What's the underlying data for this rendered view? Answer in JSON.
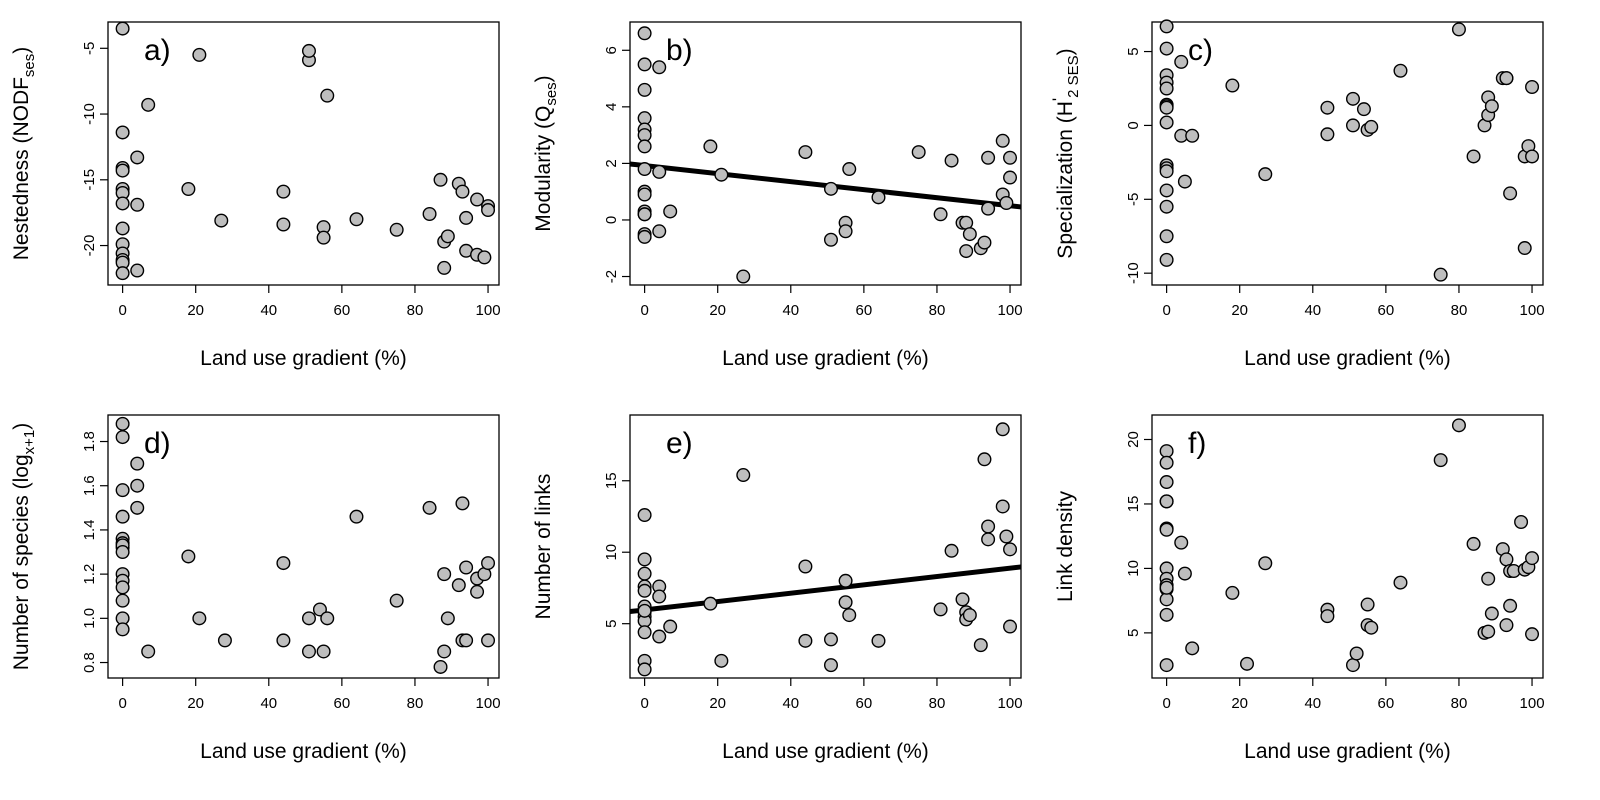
{
  "xlabel": "Land use gradient (%)",
  "chart_data": [
    {
      "type": "scatter",
      "panel_label": "a)",
      "ylabel": {
        "main": "Nestedness (NODF",
        "sub": "ses",
        "end": ")"
      },
      "xlim": [
        -4,
        103
      ],
      "ylim": [
        -23,
        -3
      ],
      "xticks": [
        0,
        20,
        40,
        60,
        80,
        100
      ],
      "yticks": [
        -20,
        -15,
        -10,
        -5
      ],
      "ytick_labels": [
        "-20",
        "-15",
        "-10",
        "-5"
      ],
      "x": [
        0,
        0,
        0,
        0,
        0,
        0,
        0,
        0,
        0,
        0,
        0,
        0,
        0,
        4,
        4,
        4,
        7,
        18,
        21,
        27,
        44,
        44,
        51,
        51,
        55,
        55,
        56,
        64,
        75,
        84,
        87,
        88,
        88,
        89,
        92,
        93,
        94,
        94,
        97,
        97,
        99,
        100,
        100
      ],
      "y": [
        -3.5,
        -11.4,
        -14.1,
        -14.3,
        -15.7,
        -16,
        -16.8,
        -18.7,
        -19.9,
        -20.6,
        -21.1,
        -21.3,
        -22.1,
        -13.3,
        -16.9,
        -21.9,
        -9.3,
        -15.7,
        -5.5,
        -18.1,
        -15.9,
        -18.4,
        -5.9,
        -5.2,
        -18.6,
        -19.4,
        -8.6,
        -18,
        -18.8,
        -17.6,
        -15,
        -19.7,
        -21.7,
        -19.3,
        -15.3,
        -15.9,
        -17.9,
        -20.4,
        -16.5,
        -20.7,
        -20.9,
        -17,
        -17.3
      ]
    },
    {
      "type": "scatter",
      "panel_label": "b)",
      "ylabel": {
        "main": "Modularity (Q",
        "sub": "ses",
        "end": ")"
      },
      "xlim": [
        -4,
        103
      ],
      "ylim": [
        -2.3,
        7
      ],
      "xticks": [
        0,
        20,
        40,
        60,
        80,
        100
      ],
      "yticks": [
        -2,
        0,
        2,
        4,
        6
      ],
      "ytick_labels": [
        "-2",
        "0",
        "2",
        "4",
        "6"
      ],
      "x": [
        0,
        0,
        0,
        0,
        0,
        0,
        0,
        0,
        0,
        0,
        0,
        0,
        0,
        0,
        0,
        4,
        4,
        4,
        7,
        18,
        21,
        27,
        44,
        51,
        51,
        55,
        55,
        56,
        64,
        75,
        81,
        84,
        87,
        88,
        88,
        89,
        92,
        93,
        94,
        94,
        98,
        98,
        100,
        100,
        99
      ],
      "y": [
        6.6,
        5.5,
        4.6,
        3.6,
        3.2,
        3,
        2.6,
        1.8,
        1,
        0.9,
        0.3,
        0.2,
        0.2,
        -0.5,
        -0.6,
        5.4,
        1.7,
        -0.4,
        0.3,
        2.6,
        1.6,
        -2,
        2.4,
        1.1,
        -0.7,
        -0.1,
        -0.4,
        1.8,
        0.8,
        2.4,
        0.2,
        2.1,
        -0.1,
        -0.1,
        -1.1,
        -0.5,
        -1,
        -0.8,
        0.4,
        2.2,
        2.8,
        0.9,
        2.2,
        1.5,
        0.6
      ],
      "trend": {
        "x": [
          -4,
          103
        ],
        "y": [
          1.98,
          0.46
        ]
      }
    },
    {
      "type": "scatter",
      "panel_label": "c)",
      "ylabel": {
        "main": "Specialization (H",
        "sub": "2 SES",
        "prime": "'",
        "end": ")"
      },
      "xlim": [
        -4,
        103
      ],
      "ylim": [
        -10.8,
        7
      ],
      "xticks": [
        0,
        20,
        40,
        60,
        80,
        100
      ],
      "yticks": [
        -10,
        -5,
        0,
        5
      ],
      "ytick_labels": [
        "-10",
        "-5",
        "0",
        "5"
      ],
      "x": [
        0,
        0,
        0,
        0,
        0,
        0,
        0,
        0,
        0,
        0,
        0,
        0,
        0,
        0,
        0,
        0,
        4,
        4,
        5,
        7,
        18,
        27,
        44,
        44,
        51,
        51,
        54,
        55,
        56,
        64,
        75,
        80,
        84,
        87,
        88,
        88,
        89,
        92,
        93,
        93,
        94,
        98,
        98,
        99,
        100,
        100
      ],
      "y": [
        6.7,
        5.2,
        3.4,
        2.9,
        2.5,
        1.4,
        1.3,
        0.2,
        -2.7,
        -2.9,
        -3.1,
        -4.4,
        -5.5,
        -7.5,
        -9.1,
        1.2,
        4.3,
        -0.7,
        -3.8,
        -0.7,
        2.7,
        -3.3,
        1.2,
        -0.6,
        1.8,
        0,
        1.1,
        -0.3,
        -0.1,
        3.7,
        -10.1,
        6.5,
        -2.1,
        0,
        1.9,
        0.7,
        1.3,
        3.2,
        3.2,
        3.2,
        -4.6,
        -2.1,
        -8.3,
        -1.4,
        2.6,
        -2.1
      ]
    },
    {
      "type": "scatter",
      "panel_label": "d)",
      "ylabel": {
        "main": "Number of species (log",
        "sub": "x+1",
        "end": ")"
      },
      "xlim": [
        -4,
        103
      ],
      "ylim": [
        0.73,
        1.92
      ],
      "xticks": [
        0,
        20,
        40,
        60,
        80,
        100
      ],
      "yticks": [
        0.8,
        1.0,
        1.2,
        1.4,
        1.6,
        1.8
      ],
      "ytick_labels": [
        "0.8",
        "1.0",
        "1.2",
        "1.4",
        "1.6",
        "1.8"
      ],
      "x": [
        0,
        0,
        0,
        0,
        0,
        0,
        0,
        0,
        0,
        0,
        0,
        0,
        0,
        0,
        0,
        4,
        4,
        4,
        7,
        18,
        21,
        28,
        44,
        44,
        51,
        51,
        54,
        55,
        56,
        64,
        75,
        84,
        87,
        88,
        88,
        89,
        92,
        93,
        93,
        94,
        94,
        97,
        97,
        99,
        100,
        100
      ],
      "y": [
        1.88,
        1.82,
        1.58,
        1.46,
        1.36,
        1.34,
        1.32,
        1.2,
        1.17,
        1.14,
        1.08,
        1,
        0.95,
        1.33,
        1.3,
        1.7,
        1.6,
        1.5,
        0.85,
        1.28,
        1,
        0.9,
        1.25,
        0.9,
        1,
        0.85,
        1.04,
        0.85,
        1,
        1.46,
        1.08,
        1.5,
        0.78,
        1.2,
        0.85,
        1,
        1.15,
        1.52,
        0.9,
        0.9,
        1.23,
        1.18,
        1.12,
        1.2,
        1.25,
        0.9
      ]
    },
    {
      "type": "scatter",
      "panel_label": "e)",
      "ylabel": {
        "main": "Number of links",
        "sub": "",
        "end": ""
      },
      "xlim": [
        -4,
        103
      ],
      "ylim": [
        1.2,
        19.6
      ],
      "xticks": [
        0,
        20,
        40,
        60,
        80,
        100
      ],
      "yticks": [
        5,
        10,
        15
      ],
      "ytick_labels": [
        "5",
        "10",
        "15"
      ],
      "x": [
        0,
        0,
        0,
        0,
        0,
        0,
        0,
        0,
        0,
        0,
        0,
        0,
        0,
        4,
        4,
        4,
        7,
        18,
        21,
        27,
        44,
        44,
        51,
        51,
        55,
        55,
        56,
        64,
        81,
        84,
        87,
        88,
        88,
        89,
        92,
        93,
        94,
        94,
        98,
        98,
        99,
        100,
        100
      ],
      "y": [
        12.6,
        9.5,
        8.5,
        7.6,
        7.3,
        6.2,
        5.8,
        5.5,
        5.2,
        4.4,
        2.4,
        1.8,
        5.9,
        7.6,
        6.9,
        4.1,
        4.8,
        6.4,
        2.4,
        15.4,
        9,
        3.8,
        3.9,
        2.1,
        8,
        6.5,
        5.6,
        3.8,
        6,
        10.1,
        6.7,
        5.8,
        5.3,
        5.6,
        3.5,
        16.5,
        11.8,
        10.9,
        13.2,
        18.6,
        11.1,
        10.2,
        4.8
      ],
      "trend": {
        "x": [
          -4,
          103
        ],
        "y": [
          5.85,
          8.97
        ]
      }
    },
    {
      "type": "scatter",
      "panel_label": "f)",
      "ylabel": {
        "main": "Link density",
        "sub": "",
        "end": ""
      },
      "xlim": [
        -4,
        103
      ],
      "ylim": [
        1.5,
        21.9
      ],
      "xticks": [
        0,
        20,
        40,
        60,
        80,
        100
      ],
      "yticks": [
        5,
        10,
        15,
        20
      ],
      "ytick_labels": [
        "5",
        "10",
        "15",
        "20"
      ],
      "x": [
        0,
        0,
        0,
        0,
        0,
        0,
        0,
        0,
        0,
        0,
        0,
        0,
        0,
        0,
        0,
        4,
        5,
        7,
        18,
        22,
        27,
        44,
        44,
        51,
        52,
        55,
        55,
        56,
        64,
        75,
        80,
        84,
        87,
        88,
        88,
        89,
        92,
        93,
        93,
        94,
        94,
        95,
        97,
        98,
        99,
        100,
        100
      ],
      "y": [
        19.1,
        18.2,
        16.7,
        15.2,
        13.1,
        13,
        10,
        9.2,
        8.7,
        8.4,
        7.6,
        6.4,
        2.5,
        15.2,
        8.5,
        12,
        9.6,
        3.8,
        8.1,
        2.6,
        10.4,
        6.8,
        6.3,
        2.5,
        3.4,
        7.2,
        5.6,
        5.4,
        8.9,
        18.4,
        21.1,
        11.9,
        5,
        5.1,
        9.2,
        6.5,
        11.5,
        5.6,
        10.7,
        9.8,
        7.1,
        9.8,
        13.6,
        9.9,
        10.1,
        10.8,
        4.9
      ]
    }
  ]
}
